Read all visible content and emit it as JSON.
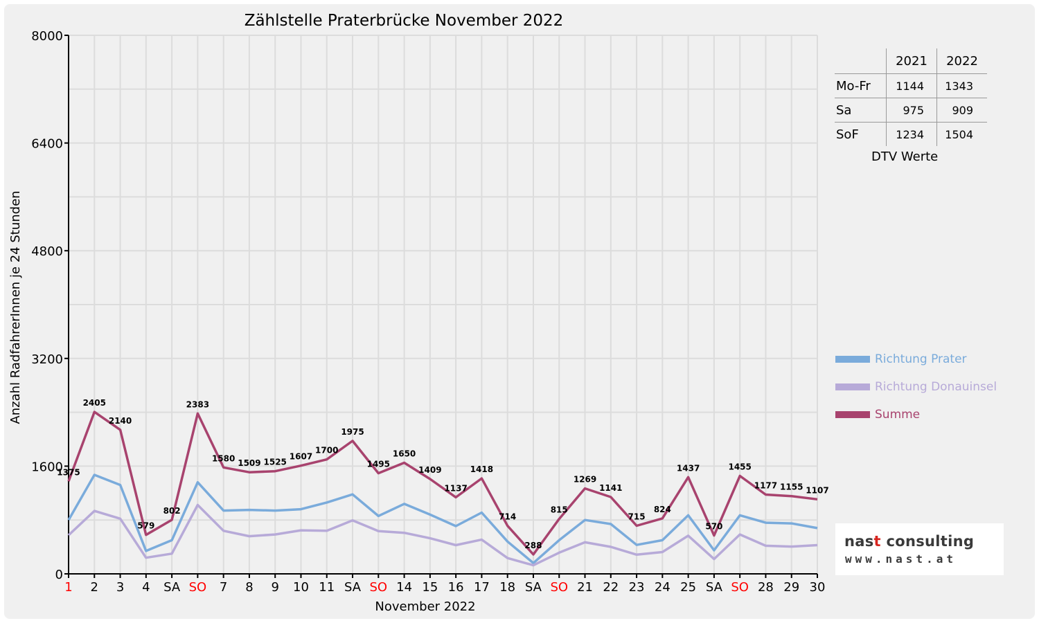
{
  "chart_data": {
    "type": "line",
    "title": "Zählstelle Praterbrücke November 2022",
    "xlabel": "November 2022",
    "ylabel": "Anzahl RadfahrerInnen je 24 Stunden",
    "ylim": [
      0,
      8000
    ],
    "yticks": [
      0,
      1600,
      3200,
      4800,
      6400,
      8000
    ],
    "grid": true,
    "categories": [
      "1",
      "2",
      "3",
      "4",
      "SA",
      "SO",
      "7",
      "8",
      "9",
      "10",
      "11",
      "SA",
      "SO",
      "14",
      "15",
      "16",
      "17",
      "18",
      "SA",
      "SO",
      "21",
      "22",
      "23",
      "24",
      "25",
      "SA",
      "SO",
      "28",
      "29",
      "30"
    ],
    "red_categories": [
      0,
      5,
      12,
      19,
      26
    ],
    "series": [
      {
        "name": "Richtung Prater",
        "color": "#7aabdb",
        "values": [
          800,
          1470,
          1320,
          340,
          500,
          1360,
          940,
          950,
          940,
          960,
          1060,
          1180,
          860,
          1040,
          880,
          710,
          910,
          480,
          160,
          500,
          800,
          740,
          430,
          500,
          870,
          350,
          870,
          760,
          750,
          680
        ]
      },
      {
        "name": "Richtung Donauinsel",
        "color": "#b7aad8",
        "values": [
          575,
          935,
          820,
          240,
          300,
          1023,
          640,
          559,
          585,
          647,
          640,
          795,
          635,
          610,
          529,
          427,
          508,
          234,
          128,
          315,
          469,
          401,
          285,
          324,
          567,
          220,
          585,
          417,
          405,
          427
        ]
      },
      {
        "name": "Summe",
        "color": "#a8436e",
        "values": [
          1375,
          2405,
          2140,
          579,
          802,
          2383,
          1580,
          1509,
          1525,
          1607,
          1700,
          1975,
          1495,
          1650,
          1409,
          1137,
          1418,
          714,
          288,
          815,
          1269,
          1141,
          715,
          824,
          1437,
          570,
          1455,
          1177,
          1155,
          1107
        ]
      }
    ],
    "data_labels": [
      "1375",
      "2405",
      "2140",
      "579",
      "802",
      "2383",
      "1580",
      "1509",
      "1525",
      "1607",
      "1700",
      "1975",
      "1495",
      "1650",
      "1409",
      "1137",
      "1418",
      "714",
      "288",
      "815",
      "1269",
      "1141",
      "715",
      "824",
      "1437",
      "570",
      "1455",
      "1177",
      "1155",
      "1107"
    ],
    "legend_position": "right"
  },
  "dtv_table": {
    "headers": [
      "",
      "2021",
      "2022"
    ],
    "rows": [
      {
        "label": "Mo-Fr",
        "v2021": "1144",
        "v2022": "1343"
      },
      {
        "label": "Sa",
        "v2021": "975",
        "v2022": "909"
      },
      {
        "label": "SoF",
        "v2021": "1234",
        "v2022": "1504"
      }
    ],
    "caption": "DTV Werte"
  },
  "logo": {
    "name_dark": "nas",
    "name_red": "t",
    "name_rest": " consulting",
    "url": "www.nast.at"
  },
  "colors": {
    "background": "#f0f0f0",
    "sunday_label": "#ff0000"
  }
}
